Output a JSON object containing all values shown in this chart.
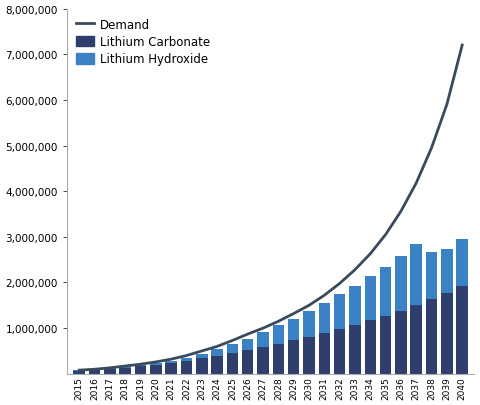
{
  "years": [
    2015,
    2016,
    2017,
    2018,
    2019,
    2020,
    2021,
    2022,
    2023,
    2024,
    2025,
    2026,
    2027,
    2028,
    2029,
    2030,
    2031,
    2032,
    2033,
    2034,
    2035,
    2036,
    2037,
    2038,
    2039,
    2040
  ],
  "demand": [
    80000,
    100000,
    130000,
    170000,
    210000,
    260000,
    320000,
    400000,
    500000,
    600000,
    730000,
    870000,
    1000000,
    1150000,
    1320000,
    1500000,
    1720000,
    1980000,
    2280000,
    2630000,
    3050000,
    3560000,
    4180000,
    4950000,
    5900000,
    7200000
  ],
  "carbonate": [
    65000,
    80000,
    100000,
    130000,
    160000,
    190000,
    230000,
    280000,
    340000,
    400000,
    460000,
    520000,
    590000,
    660000,
    730000,
    800000,
    890000,
    980000,
    1070000,
    1170000,
    1270000,
    1380000,
    1500000,
    1630000,
    1760000,
    1920000
  ],
  "hydroxide": [
    10000,
    12000,
    17000,
    22000,
    28000,
    36000,
    50000,
    70000,
    100000,
    140000,
    190000,
    250000,
    320000,
    400000,
    480000,
    570000,
    660000,
    760000,
    860000,
    970000,
    1080000,
    1210000,
    1350000,
    1040000,
    980000,
    1030000
  ],
  "demand_color": "#3a4a5c",
  "carbonate_color": "#2e3f6e",
  "hydroxide_color": "#3b82c4",
  "ylim": [
    0,
    8000000
  ],
  "yticks": [
    0,
    1000000,
    2000000,
    3000000,
    4000000,
    5000000,
    6000000,
    7000000,
    8000000
  ],
  "legend_labels": [
    "Demand",
    "Lithium Carbonate",
    "Lithium Hydroxide"
  ],
  "background_color": "#ffffff",
  "bar_width": 0.75
}
